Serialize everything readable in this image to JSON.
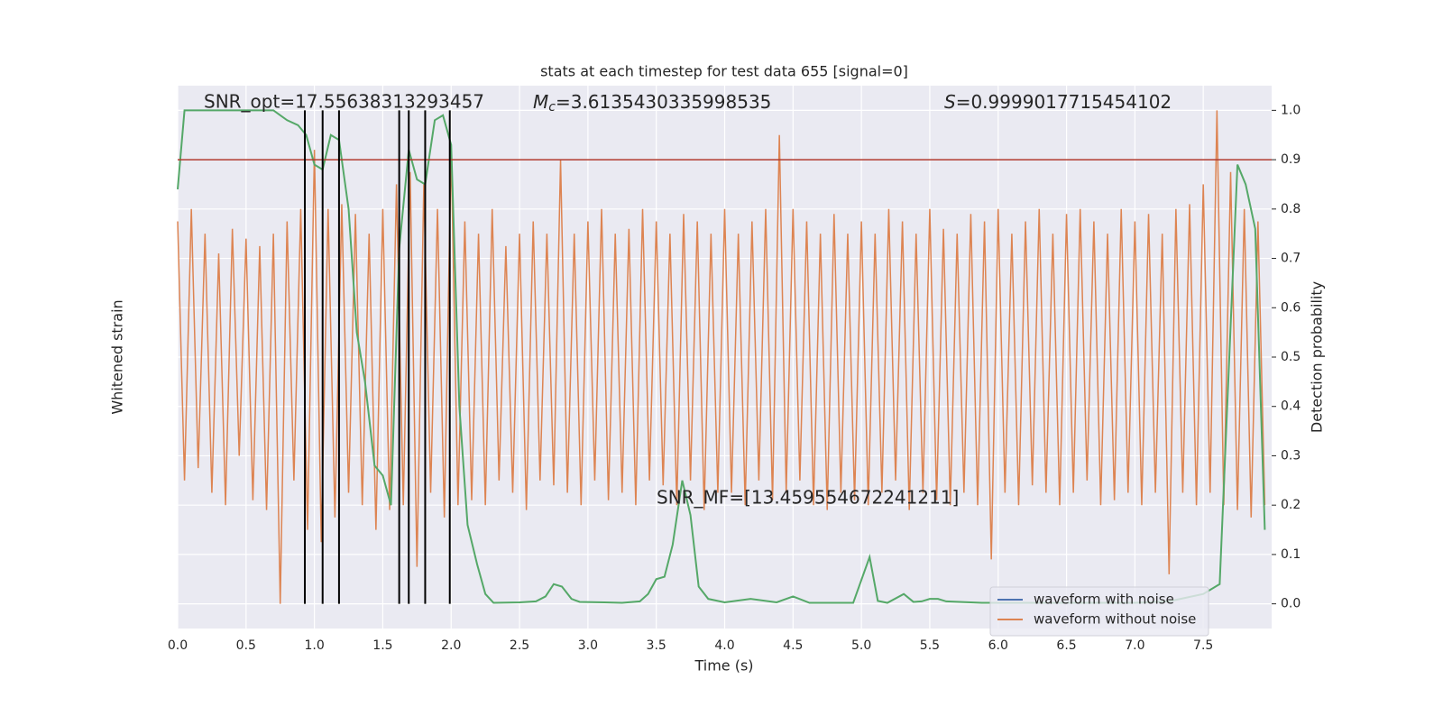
{
  "chart_data": {
    "type": "line",
    "title": "stats at each timestep for test data 655 [signal=0]",
    "xlabel": "Time (s)",
    "ylabel": "Whitened strain",
    "y2label": "Detection probability",
    "annotations": {
      "snr_opt": "SNR_opt=17.55638313293457",
      "mc": {
        "symbol": "M",
        "subscript": "c",
        "text": "=3.6135430335998535"
      },
      "s": {
        "symbol": "S",
        "text": "=0.9999017715454102"
      },
      "snr_mf": "SNR_MF=[13.459554672241211]"
    },
    "xlim": [
      0,
      8
    ],
    "xticks": [
      {
        "value": 0,
        "label": "0.0"
      },
      {
        "value": 0.5,
        "label": "0.5"
      },
      {
        "value": 1,
        "label": "1.0"
      },
      {
        "value": 1.5,
        "label": "1.5"
      },
      {
        "value": 2,
        "label": "2.0"
      },
      {
        "value": 2.5,
        "label": "2.5"
      },
      {
        "value": 3,
        "label": "3.0"
      },
      {
        "value": 3.5,
        "label": "3.5"
      },
      {
        "value": 4,
        "label": "4.0"
      },
      {
        "value": 4.5,
        "label": "4.5"
      },
      {
        "value": 5,
        "label": "5.0"
      },
      {
        "value": 5.5,
        "label": "5.5"
      },
      {
        "value": 6,
        "label": "6.0"
      },
      {
        "value": 6.5,
        "label": "6.5"
      },
      {
        "value": 7,
        "label": "7.0"
      },
      {
        "value": 7.5,
        "label": "7.5"
      }
    ],
    "ylim": [
      -1.1,
      1.1
    ],
    "y2lim": [
      -0.05,
      1.05
    ],
    "y2ticks": [
      {
        "value": 0,
        "label": "0.0"
      },
      {
        "value": 0.1,
        "label": "0.1"
      },
      {
        "value": 0.2,
        "label": "0.2"
      },
      {
        "value": 0.3,
        "label": "0.3"
      },
      {
        "value": 0.4,
        "label": "0.4"
      },
      {
        "value": 0.5,
        "label": "0.5"
      },
      {
        "value": 0.6,
        "label": "0.6"
      },
      {
        "value": 0.7,
        "label": "0.7"
      },
      {
        "value": 0.8,
        "label": "0.8"
      },
      {
        "value": 0.9,
        "label": "0.9"
      },
      {
        "value": 1,
        "label": "1.0"
      }
    ],
    "grid": true,
    "legend": "lower right",
    "series": [
      {
        "name": "waveform with noise",
        "color": "#4c72b0",
        "x": [],
        "values": []
      },
      {
        "name": "waveform without noise",
        "color": "#dd8452",
        "x": [
          0,
          0.05,
          0.1,
          0.15,
          0.2,
          0.25,
          0.3,
          0.35,
          0.4,
          0.45,
          0.5,
          0.55,
          0.6,
          0.65,
          0.7,
          0.75,
          0.8,
          0.85,
          0.9,
          0.95,
          1,
          1.05,
          1.1,
          1.15,
          1.2,
          1.25,
          1.3,
          1.35,
          1.4,
          1.45,
          1.5,
          1.55,
          1.6,
          1.65,
          1.7,
          1.75,
          1.8,
          1.85,
          1.9,
          1.95,
          2,
          2.05,
          2.1,
          2.15,
          2.2,
          2.25,
          2.3,
          2.35,
          2.4,
          2.45,
          2.5,
          2.55,
          2.6,
          2.65,
          2.7,
          2.75,
          2.8,
          2.85,
          2.9,
          2.95,
          3,
          3.05,
          3.1,
          3.15,
          3.2,
          3.25,
          3.3,
          3.35,
          3.4,
          3.45,
          3.5,
          3.55,
          3.6,
          3.65,
          3.7,
          3.75,
          3.8,
          3.85,
          3.9,
          3.95,
          4,
          4.05,
          4.1,
          4.15,
          4.2,
          4.25,
          4.3,
          4.35,
          4.4,
          4.45,
          4.5,
          4.55,
          4.6,
          4.65,
          4.7,
          4.75,
          4.8,
          4.85,
          4.9,
          4.95,
          5,
          5.05,
          5.1,
          5.15,
          5.2,
          5.25,
          5.3,
          5.35,
          5.4,
          5.45,
          5.5,
          5.55,
          5.6,
          5.65,
          5.7,
          5.75,
          5.8,
          5.85,
          5.9,
          5.95,
          6,
          6.05,
          6.1,
          6.15,
          6.2,
          6.25,
          6.3,
          6.35,
          6.4,
          6.45,
          6.5,
          6.55,
          6.6,
          6.65,
          6.7,
          6.75,
          6.8,
          6.85,
          6.9,
          6.95,
          7,
          7.05,
          7.1,
          7.15,
          7.2,
          7.25,
          7.3,
          7.35,
          7.4,
          7.45,
          7.5,
          7.55,
          7.6,
          7.65,
          7.7,
          7.75,
          7.8,
          7.85,
          7.9,
          7.95
        ],
        "values": [
          0.55,
          -0.5,
          0.6,
          -0.45,
          0.5,
          -0.55,
          0.42,
          -0.6,
          0.52,
          -0.4,
          0.48,
          -0.58,
          0.45,
          -0.62,
          0.5,
          -1.0,
          0.55,
          -0.5,
          0.6,
          -0.7,
          0.84,
          -0.75,
          0.6,
          -0.65,
          0.62,
          -0.55,
          0.58,
          -0.6,
          0.5,
          -0.7,
          0.6,
          -0.62,
          0.7,
          -0.6,
          0.75,
          -0.85,
          0.7,
          -0.55,
          0.6,
          -0.65,
          0.84,
          -0.6,
          0.55,
          -0.58,
          0.5,
          -0.6,
          0.6,
          -0.5,
          0.45,
          -0.55,
          0.5,
          -0.62,
          0.55,
          -0.5,
          0.5,
          -0.52,
          0.8,
          -0.55,
          0.5,
          -0.6,
          0.55,
          -0.5,
          0.6,
          -0.58,
          0.5,
          -0.55,
          0.52,
          -0.6,
          0.6,
          -0.5,
          0.55,
          -0.52,
          0.5,
          -0.6,
          0.58,
          -0.5,
          0.55,
          -0.62,
          0.5,
          -0.55,
          0.6,
          -0.55,
          0.5,
          -0.6,
          0.55,
          -0.5,
          0.6,
          -0.58,
          0.9,
          -0.55,
          0.6,
          -0.5,
          0.55,
          -0.6,
          0.5,
          -0.62,
          0.58,
          -0.55,
          0.5,
          -0.58,
          0.55,
          -0.6,
          0.5,
          -0.55,
          0.6,
          -0.5,
          0.55,
          -0.62,
          0.5,
          -0.55,
          0.6,
          -0.58,
          0.52,
          -0.6,
          0.5,
          -0.55,
          0.58,
          -0.6,
          0.55,
          -0.82,
          0.6,
          -0.55,
          0.5,
          -0.6,
          0.55,
          -0.52,
          0.6,
          -0.55,
          0.5,
          -0.6,
          0.58,
          -0.55,
          0.6,
          -0.5,
          0.55,
          -0.6,
          0.5,
          -0.58,
          0.6,
          -0.55,
          0.55,
          -0.6,
          0.58,
          -0.55,
          0.5,
          -0.88,
          0.6,
          -0.55,
          0.62,
          -0.6,
          0.7,
          -0.55,
          1.0,
          -0.6,
          0.75,
          -0.62,
          0.6,
          -0.65,
          0.55,
          -0.6
        ]
      }
    ],
    "probability": {
      "color": "#55a868",
      "axis": "y2",
      "x": [
        0,
        0.05,
        0.1,
        0.2,
        0.5,
        0.7,
        0.8,
        0.88,
        0.94,
        1.0,
        1.06,
        1.12,
        1.18,
        1.25,
        1.31,
        1.37,
        1.44,
        1.5,
        1.56,
        1.62,
        1.69,
        1.75,
        1.81,
        1.88,
        1.94,
        2.0,
        2.06,
        2.12,
        2.19,
        2.25,
        2.31,
        2.5,
        2.62,
        2.69,
        2.75,
        2.81,
        2.88,
        2.94,
        3.12,
        3.25,
        3.38,
        3.44,
        3.5,
        3.56,
        3.62,
        3.69,
        3.75,
        3.81,
        3.88,
        4.0,
        4.19,
        4.38,
        4.5,
        4.62,
        4.75,
        4.94,
        5.06,
        5.12,
        5.19,
        5.31,
        5.38,
        5.44,
        5.5,
        5.56,
        5.62,
        5.88,
        6.5,
        7.0,
        7.25,
        7.5,
        7.62,
        7.75,
        7.81,
        7.88,
        7.95
      ],
      "values": [
        0.84,
        1.0,
        1.0,
        1.0,
        1.0,
        1.0,
        0.98,
        0.97,
        0.95,
        0.89,
        0.88,
        0.95,
        0.94,
        0.8,
        0.55,
        0.45,
        0.28,
        0.26,
        0.2,
        0.72,
        0.92,
        0.86,
        0.85,
        0.98,
        0.99,
        0.93,
        0.4,
        0.16,
        0.08,
        0.02,
        0.002,
        0.003,
        0.005,
        0.015,
        0.04,
        0.035,
        0.01,
        0.004,
        0.003,
        0.002,
        0.005,
        0.02,
        0.05,
        0.055,
        0.12,
        0.25,
        0.18,
        0.035,
        0.01,
        0.003,
        0.01,
        0.003,
        0.015,
        0.002,
        0.002,
        0.002,
        0.095,
        0.006,
        0.002,
        0.02,
        0.004,
        0.005,
        0.01,
        0.01,
        0.005,
        0.002,
        0.002,
        0.002,
        0.005,
        0.02,
        0.04,
        0.89,
        0.85,
        0.76,
        0.15
      ]
    },
    "threshold": {
      "value": 0.9,
      "color": "#b03a2e",
      "axis": "y2"
    },
    "vlines": {
      "color": "#000000",
      "values": [
        0.93,
        1.06,
        1.18,
        1.62,
        1.69,
        1.81,
        1.99
      ]
    }
  }
}
